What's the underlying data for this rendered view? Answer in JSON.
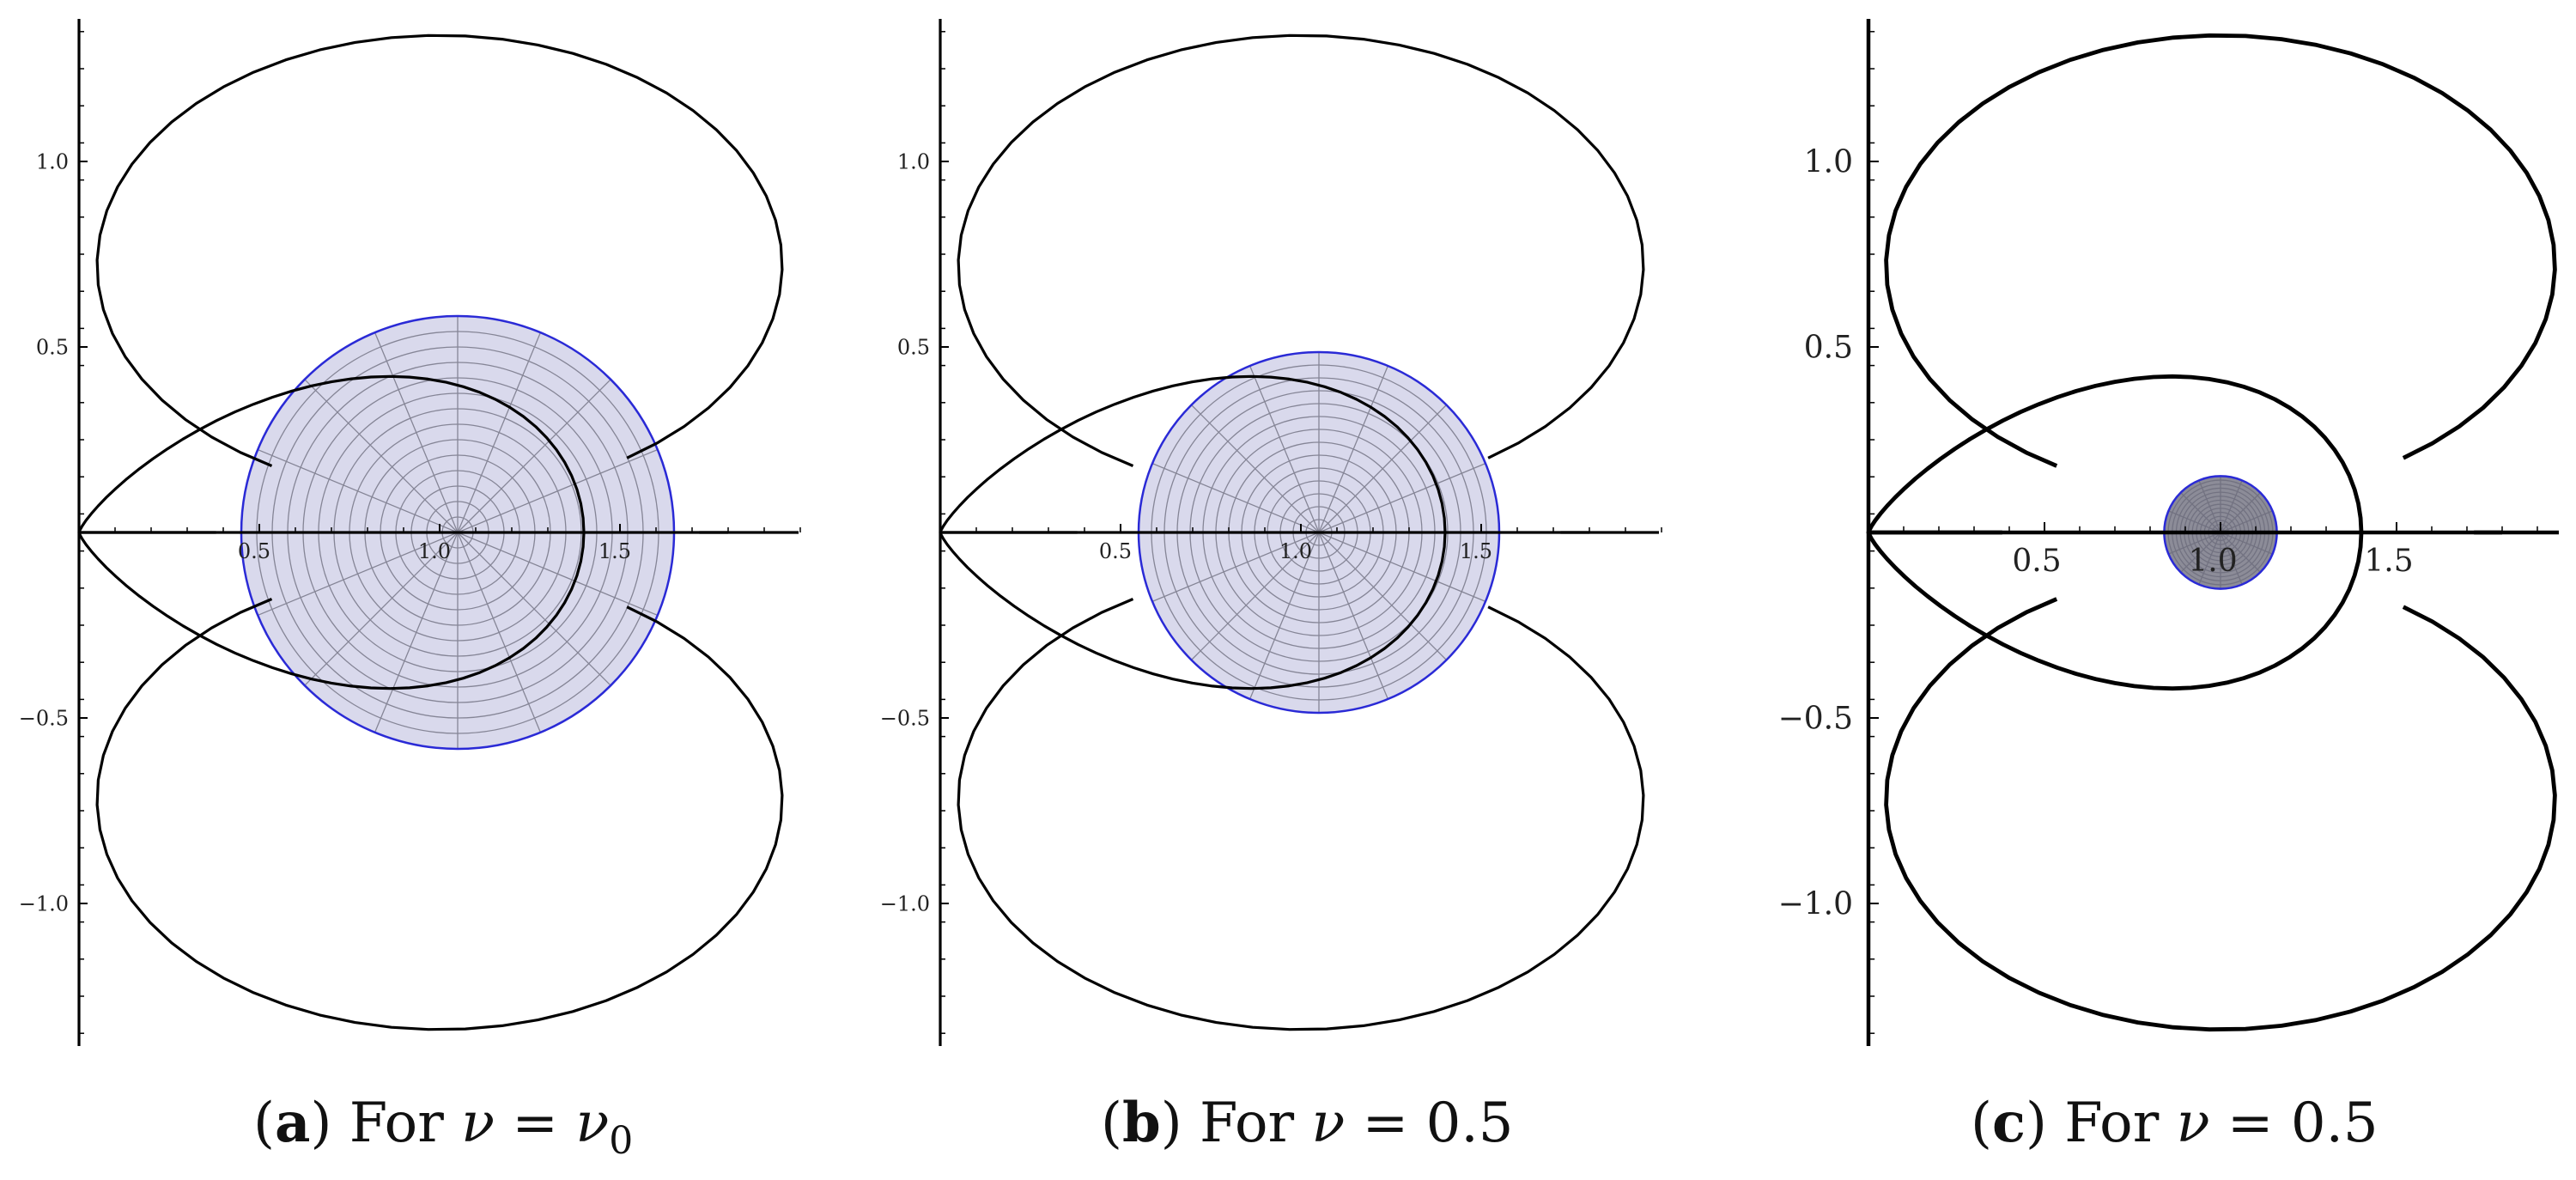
{
  "chart_data": [
    {
      "type": "line",
      "panel": "a",
      "caption_label": "a",
      "caption_text": "For",
      "caption_var": "ν",
      "caption_eq": "=",
      "caption_value_base": "ν",
      "caption_value_sub": "0",
      "x_ticks": [
        "0.5",
        "1.0",
        "1.5"
      ],
      "y_ticks": [
        "1.0",
        "0.5",
        "−0.5",
        "−1.0"
      ],
      "x_range": [
        0,
        2.0
      ],
      "y_range": [
        -1.4,
        1.4
      ],
      "curves": [
        {
          "name": "",
          "kind": "outer-boundary",
          "a": 0.5
        },
        {
          "name": "",
          "kind": "inner-teardrop",
          "a": 0.5
        }
      ],
      "disk": {
        "center": [
          1.05,
          0
        ],
        "radius": 0.6,
        "fill": "#d9d9ec",
        "stroke": "#2a2ad6",
        "mesh": true
      },
      "tick_font_scale": "small"
    },
    {
      "type": "line",
      "panel": "b",
      "caption_label": "b",
      "caption_text": "For",
      "caption_var": "ν",
      "caption_eq": "=",
      "caption_value_base": "0.5",
      "caption_value_sub": "",
      "x_ticks": [
        "0.5",
        "1.0",
        "1.5"
      ],
      "y_ticks": [
        "1.0",
        "0.5",
        "−0.5",
        "−1.0"
      ],
      "x_range": [
        0,
        2.0
      ],
      "y_range": [
        -1.4,
        1.4
      ],
      "curves": [
        {
          "name": "",
          "kind": "outer-boundary",
          "a": 0.5
        },
        {
          "name": "",
          "kind": "inner-teardrop",
          "a": 0.5
        }
      ],
      "disk": {
        "center": [
          1.05,
          0
        ],
        "radius": 0.5,
        "fill": "#d9d9ec",
        "stroke": "#2a2ad6",
        "mesh": true
      },
      "tick_font_scale": "small"
    },
    {
      "type": "line",
      "panel": "c",
      "caption_label": "c",
      "caption_text": "For",
      "caption_var": "ν",
      "caption_eq": "=",
      "caption_value_base": "0.5",
      "caption_value_sub": "",
      "x_ticks": [
        "0.5",
        "1.0",
        "1.5"
      ],
      "y_ticks": [
        "1.0",
        "0.5",
        "−0.5",
        "−1.0"
      ],
      "x_range": [
        0,
        1.9
      ],
      "y_range": [
        -1.4,
        1.4
      ],
      "curves": [
        {
          "name": "",
          "kind": "outer-boundary",
          "a": 0.5
        },
        {
          "name": "",
          "kind": "inner-teardrop",
          "a": 0.5
        }
      ],
      "disk": {
        "center": [
          1.0,
          0
        ],
        "radius": 0.16,
        "fill": "#8c8c98",
        "stroke": "#2a2ad6",
        "mesh": true
      },
      "tick_font_scale": "large"
    }
  ]
}
